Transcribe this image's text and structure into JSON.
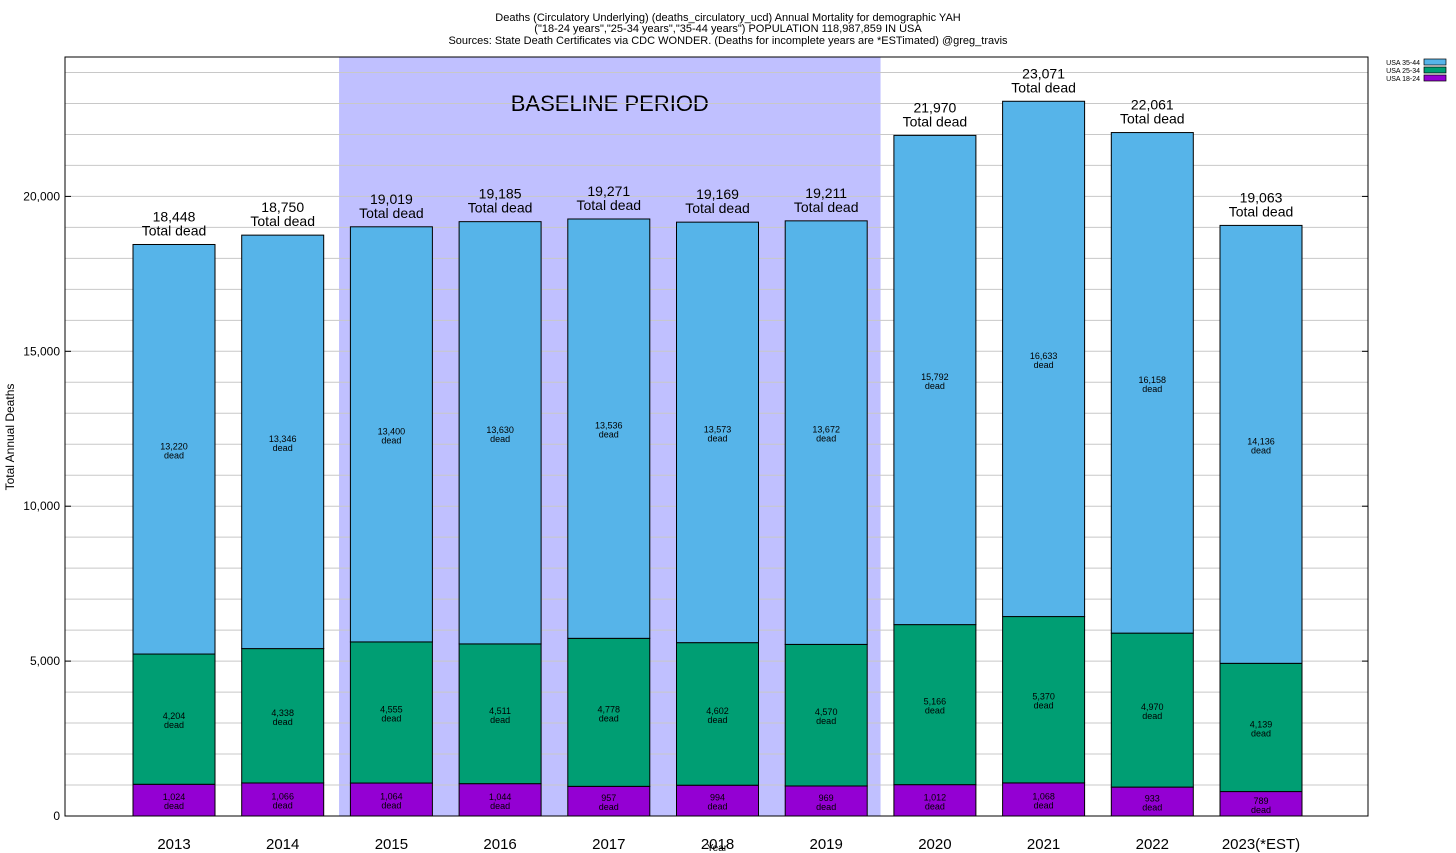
{
  "chart_data": {
    "type": "bar",
    "stacked": true,
    "title_lines": [
      "Deaths (Circulatory Underlying) (deaths_circulatory_ucd) Annual Mortality for demographic YAH",
      "(\"18-24 years\",\"25-34 years\",\"35-44 years\") POPULATION 118,987,859 IN USA",
      "Sources: State Death Certificates via CDC WONDER. (Deaths for incomplete years are *ESTimated)  @greg_travis"
    ],
    "xlabel": "Year",
    "ylabel": "Total Annual Deaths",
    "ylim": [
      0,
      24500
    ],
    "yticks": [
      0,
      5000,
      10000,
      15000,
      20000
    ],
    "ytick_labels": [
      "0",
      "5,000",
      "10,000",
      "15,000",
      "20,000"
    ],
    "grid": "horizontal",
    "legend_position": "top-right",
    "categories": [
      "2013",
      "2014",
      "2015",
      "2016",
      "2017",
      "2018",
      "2019",
      "2020",
      "2021",
      "2022",
      "2023(*EST)"
    ],
    "series": [
      {
        "name": "USA 18-24",
        "color": "#9400d3",
        "values": [
          1024,
          1066,
          1064,
          1044,
          957,
          994,
          969,
          1012,
          1068,
          933,
          789
        ],
        "labels": [
          "1,024",
          "1,066",
          "1,064",
          "1,044",
          "957",
          "994",
          "969",
          "1,012",
          "1,068",
          "933",
          "789"
        ]
      },
      {
        "name": "USA 25-34",
        "color": "#009e73",
        "values": [
          4204,
          4338,
          4555,
          4511,
          4778,
          4602,
          4570,
          5166,
          5370,
          4970,
          4139
        ],
        "labels": [
          "4,204",
          "4,338",
          "4,555",
          "4,511",
          "4,778",
          "4,602",
          "4,570",
          "5,166",
          "5,370",
          "4,970",
          "4,139"
        ]
      },
      {
        "name": "USA 35-44",
        "color": "#56b4e9",
        "values": [
          13220,
          13346,
          13400,
          13630,
          13536,
          13573,
          13672,
          15792,
          16633,
          16158,
          14136
        ],
        "labels": [
          "13,220",
          "13,346",
          "13,400",
          "13,630",
          "13,536",
          "13,573",
          "13,672",
          "15,792",
          "16,633",
          "16,158",
          "14,136"
        ]
      }
    ],
    "totals": [
      18448,
      18750,
      19019,
      19185,
      19271,
      19169,
      19211,
      21970,
      23071,
      22061,
      19063
    ],
    "total_labels": [
      "18,448",
      "18,750",
      "19,019",
      "19,185",
      "19,271",
      "19,169",
      "19,211",
      "21,970",
      "23,071",
      "22,061",
      "19,063"
    ],
    "segment_suffix": "dead",
    "total_suffix": "Total dead",
    "baseline": {
      "label": "BASELINE PERIOD",
      "from": "2015",
      "to": "2019",
      "color": "#c0c0ff"
    }
  }
}
